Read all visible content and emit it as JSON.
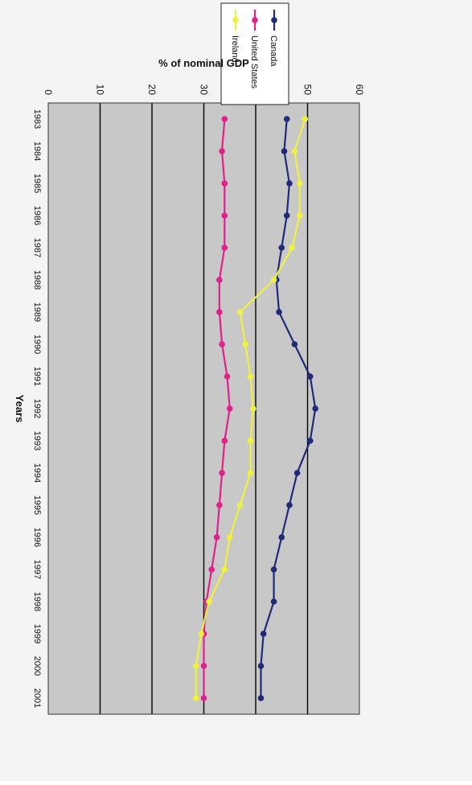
{
  "chart_data": {
    "type": "line",
    "orientation": "rotated-90-clockwise",
    "xlabel": "Years",
    "ylabel": "% of nominal GDP",
    "x": [
      "1983",
      "1984",
      "1985",
      "1986",
      "1987",
      "1988",
      "1989",
      "1990",
      "1991",
      "1992",
      "1993",
      "1994",
      "1995",
      "1996",
      "1997",
      "1998",
      "1999",
      "2000",
      "2001"
    ],
    "ylim": [
      0,
      60
    ],
    "yticks": [
      "0",
      "10",
      "20",
      "30",
      "40",
      "50",
      "60"
    ],
    "grid": true,
    "legend_position": "top-right",
    "series": [
      {
        "name": "Canada",
        "color": "#1f2a78",
        "values": [
          46,
          45.5,
          46.5,
          46,
          45,
          44,
          44.5,
          47.5,
          50.5,
          51.5,
          50.5,
          48,
          46.5,
          45,
          43.5,
          43.5,
          41.5,
          41,
          41
        ]
      },
      {
        "name": "United States",
        "color": "#e0208c",
        "values": [
          34,
          33.5,
          34,
          34,
          34,
          33,
          33,
          33.5,
          34.5,
          35,
          34,
          33.5,
          33,
          32.5,
          31.5,
          30.5,
          30,
          30,
          30
        ]
      },
      {
        "name": "Ireland",
        "color": "#f0f040",
        "values": [
          49.5,
          47.5,
          48.5,
          48.5,
          47,
          43.5,
          37,
          38,
          39,
          39.5,
          39,
          39,
          37,
          35,
          34,
          31,
          29.5,
          28.5,
          28.5
        ]
      }
    ]
  }
}
